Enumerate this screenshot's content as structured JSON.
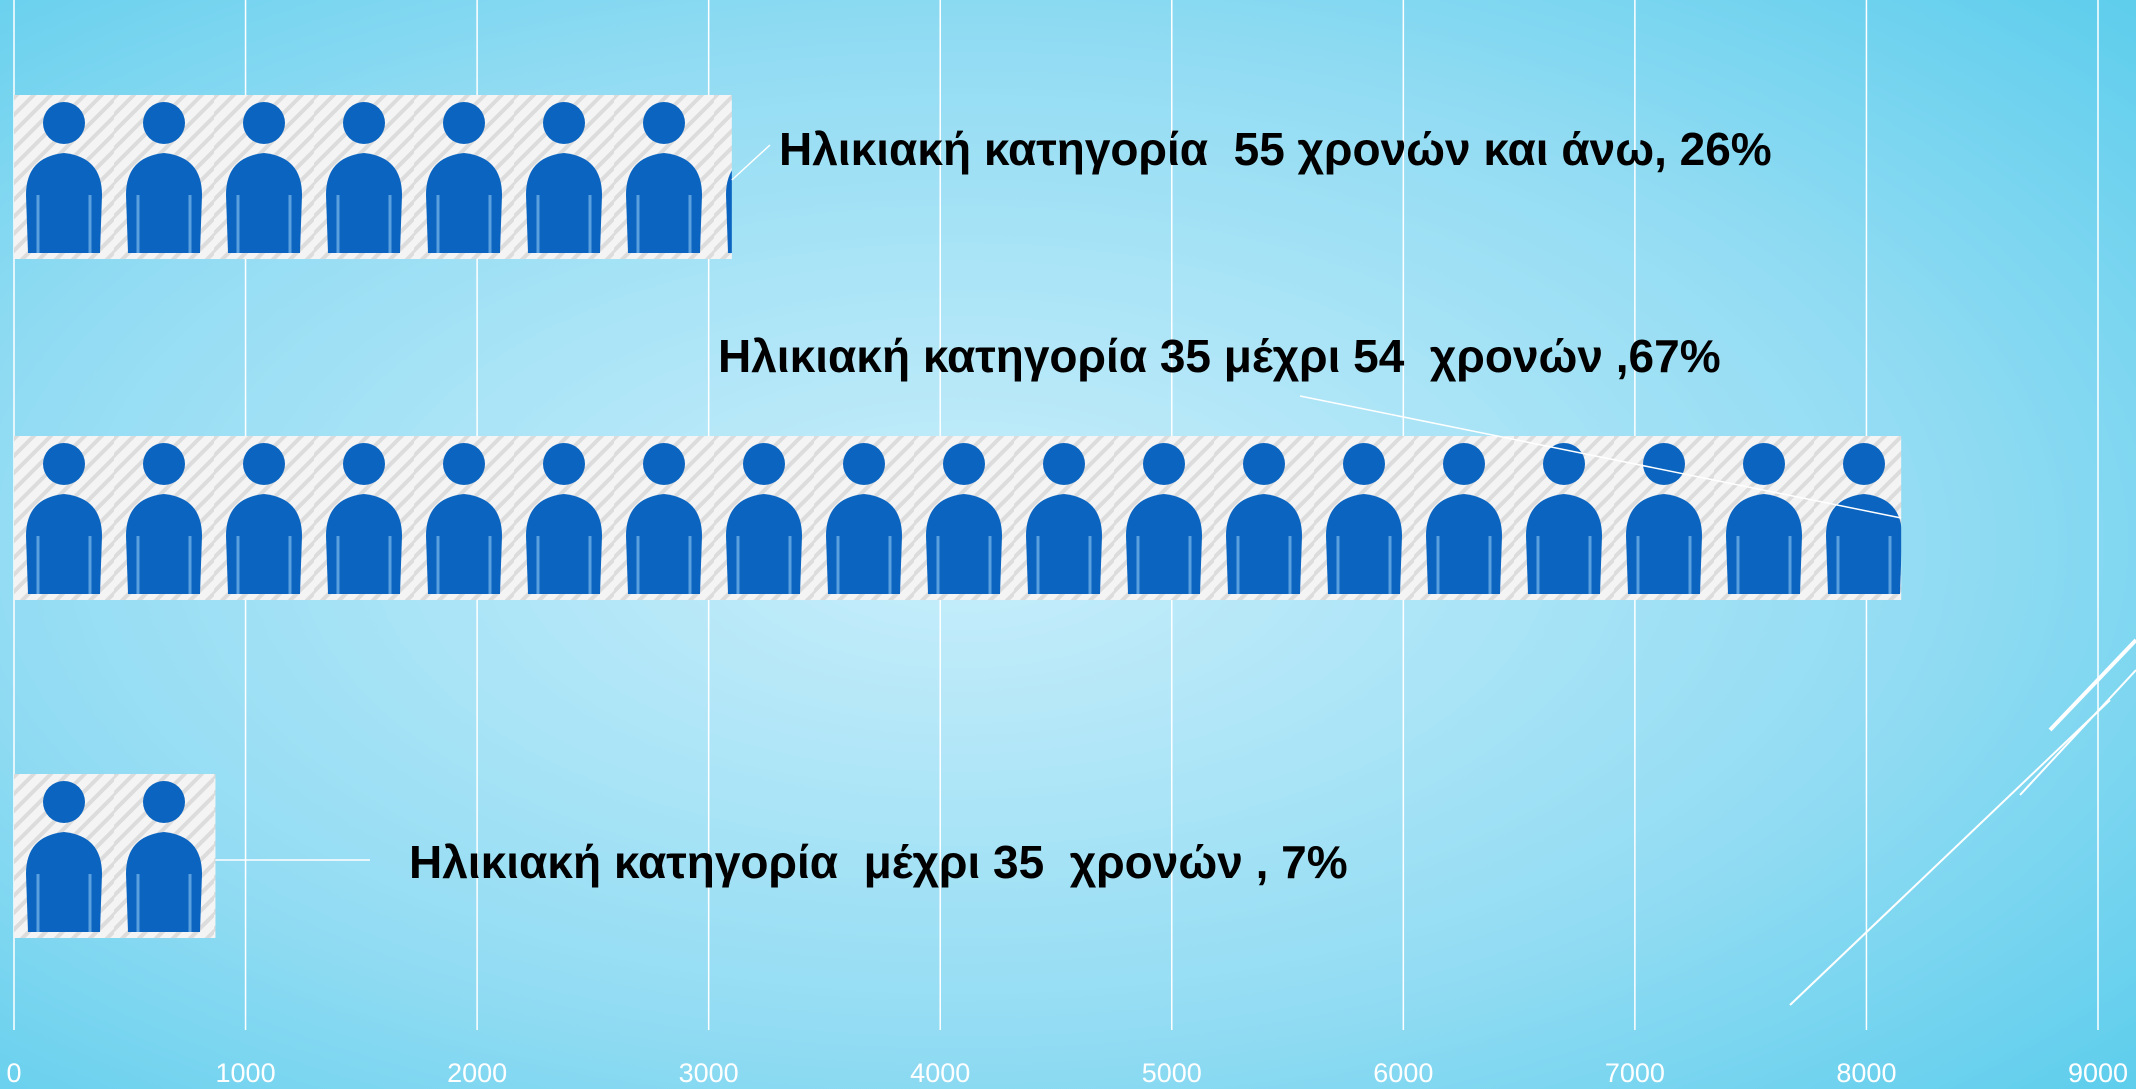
{
  "chart_data": {
    "type": "bar",
    "orientation": "horizontal",
    "categories": [
      "Ηλικιακή κατηγορία  55 χρονών και άνω, 26%",
      "Ηλικιακή κατηγορία 35 μέχρι 54  χρονών ,67%",
      "Ηλικιακή κατηγορία  μέχρι 35  χρονών , 7%"
    ],
    "values": [
      3100,
      8150,
      870
    ],
    "color": "#0a64c0",
    "xlim": [
      0,
      9000
    ],
    "xticks": [
      0,
      1000,
      2000,
      3000,
      4000,
      5000,
      6000,
      7000,
      8000,
      9000
    ],
    "grid": true
  }
}
